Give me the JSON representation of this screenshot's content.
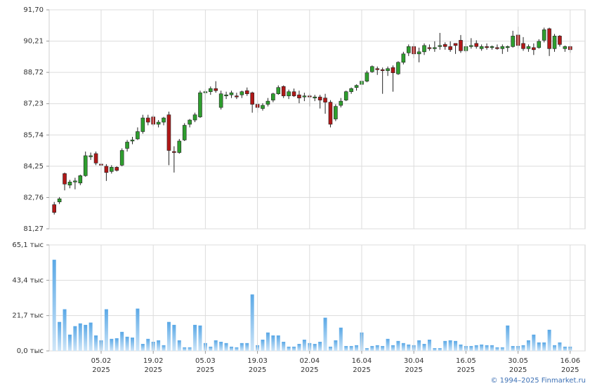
{
  "chart_data": [
    {
      "type": "candlestick",
      "open": [
        82.42,
        82.55,
        83.9,
        83.35,
        83.5,
        83.45,
        83.8,
        84.7,
        84.85,
        84.35,
        84.25,
        84.0,
        84.2,
        84.3,
        85.1,
        85.45,
        85.55,
        85.9,
        86.55,
        86.6,
        86.25,
        86.35,
        86.7,
        84.95,
        84.9,
        85.5,
        86.25,
        86.45,
        86.6,
        87.75,
        87.8,
        87.95,
        87.05,
        87.6,
        87.65,
        87.6,
        87.65,
        87.85,
        87.75,
        87.2,
        87.0,
        87.2,
        87.4,
        87.7,
        88.05,
        87.6,
        87.8,
        87.65,
        87.55,
        87.6,
        87.5,
        87.55,
        87.5,
        87.3,
        86.5,
        87.15,
        87.4,
        87.8,
        88.0,
        88.15,
        88.3,
        88.75,
        88.9,
        88.85,
        88.8,
        88.95,
        88.65,
        89.2,
        89.65,
        89.95,
        89.6,
        89.7,
        89.9,
        89.85,
        89.95,
        90.05,
        89.95,
        90.1,
        90.25,
        89.75,
        89.95,
        90.1,
        89.85,
        89.95,
        89.9,
        89.9,
        89.85,
        89.9,
        89.95,
        90.5,
        90.1,
        89.85,
        89.9,
        89.9,
        90.25,
        90.8,
        89.85,
        90.45,
        89.85,
        89.95
      ],
      "high": [
        82.55,
        82.78,
        83.95,
        83.6,
        83.7,
        83.85,
        84.95,
        84.9,
        84.95,
        84.45,
        84.35,
        84.3,
        84.25,
        85.1,
        85.5,
        85.65,
        86.1,
        86.7,
        86.7,
        86.7,
        86.45,
        86.6,
        86.85,
        85.2,
        85.55,
        86.3,
        86.5,
        86.8,
        87.85,
        87.9,
        88.05,
        88.3,
        87.85,
        87.8,
        87.85,
        87.75,
        87.85,
        88.0,
        87.8,
        87.4,
        87.25,
        87.5,
        87.75,
        88.1,
        88.1,
        87.9,
        87.95,
        87.85,
        87.75,
        87.7,
        87.65,
        87.65,
        87.7,
        87.4,
        87.2,
        87.5,
        87.85,
        88.0,
        88.15,
        88.35,
        88.8,
        89.05,
        89.0,
        88.95,
        89.0,
        89.05,
        89.25,
        89.7,
        90.05,
        90.1,
        89.9,
        90.1,
        90.05,
        90.2,
        90.6,
        90.15,
        90.2,
        90.1,
        90.5,
        90.1,
        90.35,
        90.25,
        90.05,
        90.1,
        90.0,
        90.05,
        90.05,
        90.0,
        90.7,
        90.9,
        90.4,
        90.05,
        90.1,
        90.3,
        90.85,
        90.85,
        90.55,
        90.5,
        90.0,
        90.0
      ],
      "low": [
        81.95,
        82.45,
        83.1,
        83.2,
        83.15,
        83.35,
        83.75,
        84.55,
        84.3,
        83.9,
        83.55,
        83.9,
        84.0,
        84.25,
        84.95,
        85.3,
        85.5,
        85.8,
        86.2,
        86.15,
        86.1,
        86.2,
        84.3,
        83.95,
        84.85,
        85.45,
        86.1,
        86.35,
        86.55,
        87.4,
        87.65,
        87.75,
        86.95,
        87.45,
        87.5,
        87.45,
        87.5,
        87.6,
        86.8,
        86.8,
        86.9,
        87.1,
        87.3,
        87.65,
        87.5,
        87.45,
        87.55,
        87.25,
        87.35,
        87.1,
        87.35,
        87.0,
        86.75,
        86.1,
        86.4,
        87.05,
        87.35,
        87.7,
        87.85,
        87.9,
        88.25,
        88.7,
        88.6,
        87.7,
        88.55,
        87.8,
        88.6,
        89.1,
        89.5,
        89.4,
        89.2,
        89.55,
        89.75,
        89.7,
        89.8,
        89.8,
        89.7,
        89.6,
        89.65,
        89.65,
        89.85,
        89.85,
        89.75,
        89.8,
        89.8,
        89.8,
        89.6,
        89.7,
        89.9,
        89.85,
        89.75,
        89.7,
        89.55,
        89.85,
        90.15,
        89.5,
        89.7,
        89.95,
        89.7,
        89.65
      ],
      "close": [
        82.05,
        82.7,
        83.4,
        83.5,
        83.55,
        83.8,
        84.75,
        84.75,
        84.4,
        84.3,
        83.95,
        84.2,
        84.05,
        85.0,
        85.4,
        85.5,
        85.9,
        86.55,
        86.35,
        86.25,
        86.35,
        86.55,
        85.0,
        84.9,
        85.45,
        86.2,
        86.45,
        86.7,
        87.75,
        87.8,
        87.95,
        87.85,
        87.7,
        87.65,
        87.75,
        87.55,
        87.8,
        87.7,
        87.2,
        87.05,
        87.15,
        87.35,
        87.7,
        88.0,
        87.6,
        87.8,
        87.6,
        87.5,
        87.6,
        87.55,
        87.55,
        87.4,
        87.3,
        86.25,
        87.1,
        87.35,
        87.8,
        87.95,
        88.1,
        88.3,
        88.7,
        89.0,
        88.85,
        88.8,
        88.9,
        88.7,
        89.2,
        89.6,
        89.95,
        89.6,
        89.7,
        90.0,
        89.85,
        89.9,
        90.0,
        89.95,
        89.8,
        90.0,
        89.75,
        89.95,
        90.0,
        89.95,
        89.95,
        89.9,
        89.95,
        89.85,
        89.95,
        89.95,
        90.45,
        90.0,
        89.85,
        89.95,
        89.8,
        90.2,
        90.75,
        89.85,
        90.45,
        90.05,
        89.95,
        89.8
      ],
      "up_color": "#2e9e2e",
      "down_color": "#b01818",
      "ylim": [
        81.27,
        91.7
      ],
      "yticks": [
        {
          "value": 81.27,
          "label": "81,27"
        },
        {
          "value": 82.76,
          "label": "82,76"
        },
        {
          "value": 84.25,
          "label": "84,25"
        },
        {
          "value": 85.74,
          "label": "85,74"
        },
        {
          "value": 87.23,
          "label": "87,23"
        },
        {
          "value": 88.72,
          "label": "88,72"
        },
        {
          "value": 90.21,
          "label": "90,21"
        },
        {
          "value": 91.7,
          "label": "91,70"
        }
      ],
      "grid": true
    },
    {
      "type": "bar",
      "categories": [
        null,
        null,
        null,
        null,
        null,
        null,
        null,
        null,
        null,
        [
          "05.02",
          "2025"
        ],
        null,
        null,
        null,
        null,
        null,
        null,
        null,
        null,
        null,
        [
          "19.02",
          "2025"
        ],
        null,
        null,
        null,
        null,
        null,
        null,
        null,
        null,
        null,
        [
          "05.03",
          "2025"
        ],
        null,
        null,
        null,
        null,
        null,
        null,
        null,
        null,
        null,
        [
          "19.03",
          "2025"
        ],
        null,
        null,
        null,
        null,
        null,
        null,
        null,
        null,
        null,
        [
          "02.04",
          "2025"
        ],
        null,
        null,
        null,
        null,
        null,
        null,
        null,
        null,
        null,
        [
          "16.04",
          "2025"
        ],
        null,
        null,
        null,
        null,
        null,
        null,
        null,
        null,
        null,
        [
          "30.04",
          "2025"
        ],
        null,
        null,
        null,
        null,
        null,
        null,
        null,
        null,
        null,
        [
          "16.05",
          "2025"
        ],
        null,
        null,
        null,
        null,
        null,
        null,
        null,
        null,
        null,
        [
          "30.05",
          "2025"
        ],
        null,
        null,
        null,
        null,
        null,
        null,
        null,
        null,
        null,
        [
          "16.06",
          "2025"
        ]
      ],
      "values": [
        56,
        17.8,
        25.6,
        10,
        15.2,
        16.9,
        16,
        17.4,
        9.5,
        6.5,
        25.6,
        7.4,
        7.8,
        11.7,
        8.7,
        8.2,
        26,
        4.3,
        7.4,
        5.6,
        6.5,
        3.5,
        17.8,
        16,
        6.5,
        2.2,
        2.2,
        16,
        15.6,
        4.8,
        2.6,
        6.5,
        5.6,
        4.8,
        2.6,
        2.2,
        4.8,
        4.8,
        34.7,
        3.5,
        6.9,
        11.3,
        9.5,
        9.5,
        5.6,
        2.6,
        2.6,
        4.3,
        6.9,
        4.8,
        4.3,
        5.6,
        20.4,
        2.6,
        6.5,
        14.3,
        3,
        3,
        3.5,
        11.3,
        1.7,
        3,
        3.5,
        3,
        7.4,
        3.5,
        6.1,
        4.8,
        3.9,
        3.5,
        6.5,
        4.3,
        6.9,
        1.7,
        1.7,
        6.1,
        6.5,
        6.1,
        3.9,
        3,
        3,
        3.5,
        3.9,
        3.5,
        3.5,
        2.2,
        2.2,
        15.6,
        3,
        3,
        3.5,
        6.5,
        10,
        5.2,
        5.2,
        13,
        3.5,
        5.2,
        2.6,
        2.6
      ],
      "color": "#7cbbea",
      "ylim": [
        0,
        65.1
      ],
      "yticks": [
        {
          "value": 0,
          "label": "0,0 тыс"
        },
        {
          "value": 21.7,
          "label": "21,7 тыс"
        },
        {
          "value": 43.4,
          "label": "43,4 тыс"
        },
        {
          "value": 65.1,
          "label": "65,1 тыс"
        }
      ],
      "grid": true
    }
  ],
  "credit": "© 1994–2025 Finmarket.ru"
}
